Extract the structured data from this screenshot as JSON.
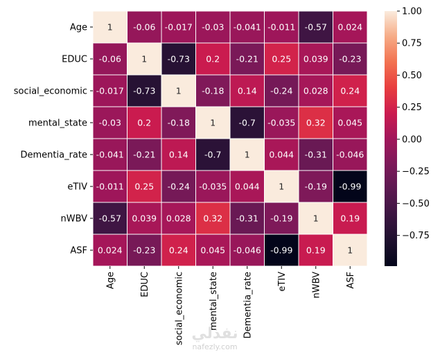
{
  "chart_data": {
    "type": "heatmap",
    "title": "",
    "xlabel": "",
    "ylabel": "",
    "rows": [
      "Age",
      "EDUC",
      "social_economic",
      "mental_state",
      "Dementia_rate",
      "eTIV",
      "nWBV",
      "ASF"
    ],
    "columns": [
      "Age",
      "EDUC",
      "social_economic",
      "mental_state",
      "Dementia_rate",
      "eTIV",
      "nWBV",
      "ASF"
    ],
    "values": [
      [
        1,
        -0.06,
        -0.017,
        -0.03,
        -0.041,
        -0.011,
        -0.57,
        0.024
      ],
      [
        -0.06,
        1,
        -0.73,
        0.2,
        -0.21,
        0.25,
        0.039,
        -0.23
      ],
      [
        -0.017,
        -0.73,
        1,
        -0.18,
        0.14,
        -0.24,
        0.028,
        0.24
      ],
      [
        -0.03,
        0.2,
        -0.18,
        1,
        -0.7,
        -0.035,
        0.32,
        0.045
      ],
      [
        -0.041,
        -0.21,
        0.14,
        -0.7,
        1,
        0.044,
        -0.31,
        -0.046
      ],
      [
        -0.011,
        0.25,
        -0.24,
        -0.035,
        0.044,
        1,
        -0.19,
        -0.99
      ],
      [
        -0.57,
        0.039,
        0.028,
        0.32,
        -0.31,
        -0.19,
        1,
        0.19
      ],
      [
        0.024,
        -0.23,
        0.24,
        0.045,
        -0.046,
        -0.99,
        0.19,
        1
      ]
    ],
    "annotations": [
      [
        "1",
        "-0.06",
        "-0.017",
        "-0.03",
        "-0.041",
        "-0.011",
        "-0.57",
        "0.024"
      ],
      [
        "-0.06",
        "1",
        "-0.73",
        "0.2",
        "-0.21",
        "0.25",
        "0.039",
        "-0.23"
      ],
      [
        "-0.017",
        "-0.73",
        "1",
        "-0.18",
        "0.14",
        "-0.24",
        "0.028",
        "0.24"
      ],
      [
        "-0.03",
        "0.2",
        "-0.18",
        "1",
        "-0.7",
        "-0.035",
        "0.32",
        "0.045"
      ],
      [
        "-0.041",
        "-0.21",
        "0.14",
        "-0.7",
        "1",
        "0.044",
        "-0.31",
        "-0.046"
      ],
      [
        "-0.011",
        "0.25",
        "-0.24",
        "-0.035",
        "0.044",
        "1",
        "-0.19",
        "-0.99"
      ],
      [
        "-0.57",
        "0.039",
        "0.028",
        "0.32",
        "-0.31",
        "-0.19",
        "1",
        "0.19"
      ],
      [
        "0.024",
        "-0.23",
        "0.24",
        "0.045",
        "-0.046",
        "-0.99",
        "0.19",
        "1"
      ]
    ],
    "colormap": "rocket",
    "color_range": [
      -0.99,
      1.0
    ],
    "colorbar": {
      "ticks": [
        1.0,
        0.75,
        0.5,
        0.25,
        0.0,
        -0.25,
        -0.5,
        -0.75
      ],
      "tick_labels": [
        "1.00",
        "0.75",
        "0.50",
        "0.25",
        "0.00",
        "−0.25",
        "−0.50",
        "−0.75"
      ],
      "placement": "right"
    },
    "grid": false,
    "cell_separator_color": "#ffffff"
  },
  "watermark": {
    "arabic_text": "نفذلي",
    "url_text": "nafezly.com"
  }
}
